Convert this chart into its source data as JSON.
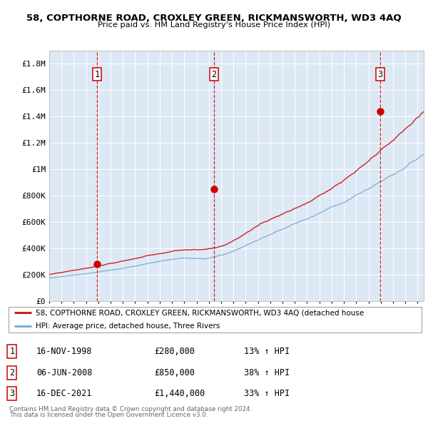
{
  "title": "58, COPTHORNE ROAD, CROXLEY GREEN, RICKMANSWORTH, WD3 4AQ",
  "subtitle": "Price paid vs. HM Land Registry's House Price Index (HPI)",
  "plot_bg_color": "#dde8f5",
  "hpi_line_color": "#7bafd4",
  "price_line_color": "#cc2222",
  "marker_color": "#cc0000",
  "vline_color": "#cc0000",
  "ylim": [
    0,
    1900000
  ],
  "yticks": [
    0,
    200000,
    400000,
    600000,
    800000,
    1000000,
    1200000,
    1400000,
    1600000,
    1800000
  ],
  "ytick_labels": [
    "£0",
    "£200K",
    "£400K",
    "£600K",
    "£800K",
    "£1M",
    "£1.2M",
    "£1.4M",
    "£1.6M",
    "£1.8M"
  ],
  "xstart": 1995.0,
  "xend": 2025.5,
  "transactions": [
    {
      "num": 1,
      "date_label": "16-NOV-1998",
      "x": 1998.88,
      "price": 280000,
      "hpi_pct": "13%"
    },
    {
      "num": 2,
      "date_label": "06-JUN-2008",
      "x": 2008.43,
      "price": 850000,
      "hpi_pct": "38%"
    },
    {
      "num": 3,
      "date_label": "16-DEC-2021",
      "x": 2021.96,
      "price": 1440000,
      "hpi_pct": "33%"
    }
  ],
  "legend_entry1": "58, COPTHORNE ROAD, CROXLEY GREEN, RICKMANSWORTH, WD3 4AQ (detached house",
  "legend_entry2": "HPI: Average price, detached house, Three Rivers",
  "footnote1": "Contains HM Land Registry data © Crown copyright and database right 2024.",
  "footnote2": "This data is licensed under the Open Government Licence v3.0."
}
